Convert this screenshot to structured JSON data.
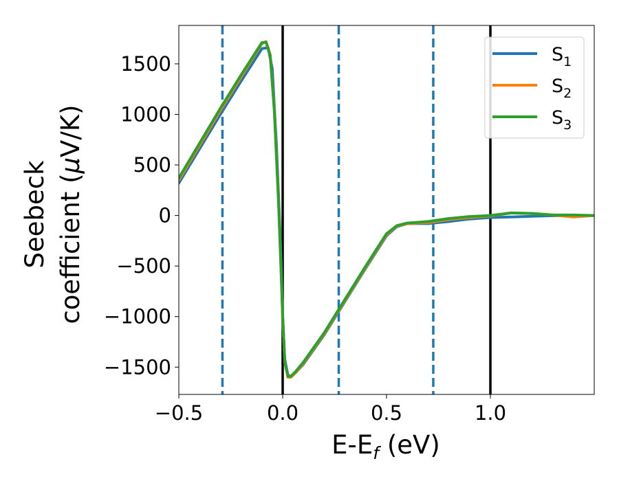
{
  "chart_data": {
    "type": "line",
    "xlabel": "E-E",
    "xlabel_sub": "f",
    "xlabel_unit": " (eV)",
    "ylabel_line1": "Seebeck",
    "ylabel_line2_prefix": "coefficient  (",
    "ylabel_mu": "μ",
    "ylabel_line2_suffix": "V/K)",
    "xlim": [
      -0.5,
      1.5
    ],
    "ylim": [
      -1770,
      1880
    ],
    "xticks": [
      {
        "value": -0.5,
        "label": "−0.5"
      },
      {
        "value": 0.0,
        "label": "0.0"
      },
      {
        "value": 0.5,
        "label": "0.5"
      },
      {
        "value": 1.0,
        "label": "1.0"
      }
    ],
    "yticks": [
      {
        "value": 1500,
        "label": "1500"
      },
      {
        "value": 1000,
        "label": "1000"
      },
      {
        "value": 500,
        "label": "500"
      },
      {
        "value": 0,
        "label": "0"
      },
      {
        "value": -500,
        "label": "−500"
      },
      {
        "value": -1000,
        "label": "−1000"
      },
      {
        "value": -1500,
        "label": "−1500"
      }
    ],
    "vlines_solid": [
      0.0,
      1.0
    ],
    "vlines_dashed": [
      -0.29,
      0.27,
      0.725
    ],
    "legend_position": "top-right",
    "series": [
      {
        "name": "S",
        "sub": "1",
        "color": "#1f77b4",
        "x": [
          -0.5,
          -0.3,
          -0.2,
          -0.1,
          -0.07,
          -0.05,
          -0.03,
          -0.01,
          0.0,
          0.01,
          0.025,
          0.04,
          0.06,
          0.1,
          0.2,
          0.3,
          0.4,
          0.5,
          0.55,
          0.6,
          0.7,
          0.8,
          0.9,
          1.0,
          1.1,
          1.2,
          1.3,
          1.4,
          1.5
        ],
        "y": [
          320,
          1000,
          1330,
          1650,
          1660,
          1450,
          700,
          -300,
          -1000,
          -1420,
          -1580,
          -1590,
          -1560,
          -1470,
          -1180,
          -850,
          -520,
          -200,
          -110,
          -80,
          -80,
          -60,
          -35,
          -20,
          -15,
          -8,
          -2,
          0,
          0
        ]
      },
      {
        "name": "S",
        "sub": "2",
        "color": "#ff7f0e",
        "x": [
          -0.5,
          -0.3,
          -0.2,
          -0.1,
          -0.08,
          -0.06,
          -0.04,
          -0.02,
          -0.005,
          0.0,
          0.01,
          0.025,
          0.04,
          0.06,
          0.1,
          0.2,
          0.3,
          0.4,
          0.5,
          0.55,
          0.6,
          0.7,
          0.8,
          0.9,
          1.0,
          1.1,
          1.2,
          1.3,
          1.4,
          1.5
        ],
        "y": [
          350,
          1040,
          1370,
          1700,
          1720,
          1590,
          1050,
          150,
          -700,
          -1000,
          -1450,
          -1600,
          -1600,
          -1560,
          -1460,
          -1170,
          -840,
          -510,
          -190,
          -105,
          -80,
          -70,
          -40,
          -20,
          -5,
          25,
          20,
          5,
          -15,
          0
        ]
      },
      {
        "name": "S",
        "sub": "3",
        "color": "#2ca02c",
        "x": [
          -0.5,
          -0.3,
          -0.2,
          -0.1,
          -0.08,
          -0.06,
          -0.04,
          -0.02,
          -0.005,
          0.0,
          0.01,
          0.025,
          0.04,
          0.06,
          0.1,
          0.2,
          0.3,
          0.4,
          0.5,
          0.55,
          0.6,
          0.7,
          0.8,
          0.9,
          1.0,
          1.1,
          1.2,
          1.3,
          1.4,
          1.5
        ],
        "y": [
          370,
          1060,
          1390,
          1710,
          1715,
          1580,
          1030,
          130,
          -700,
          -1000,
          -1440,
          -1590,
          -1590,
          -1550,
          -1450,
          -1160,
          -830,
          -500,
          -180,
          -100,
          -75,
          -60,
          -30,
          -10,
          0,
          25,
          20,
          5,
          5,
          0
        ]
      }
    ]
  }
}
